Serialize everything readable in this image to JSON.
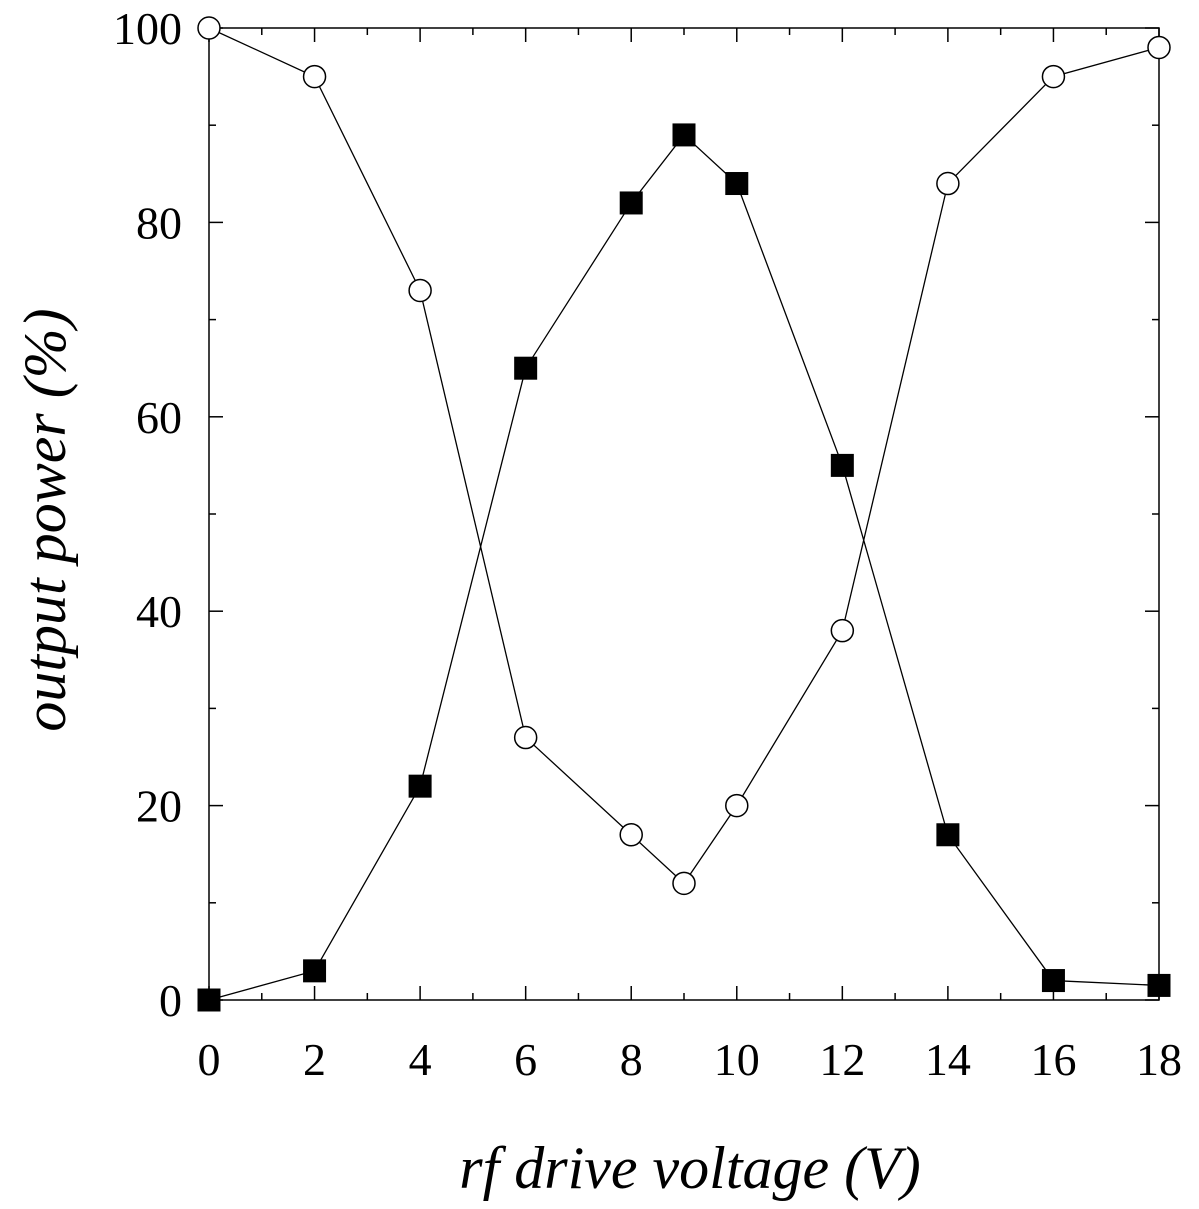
{
  "chart_data": {
    "type": "line",
    "xlabel": "rf drive voltage (V)",
    "ylabel": "output power (%)",
    "xlim": [
      0,
      18
    ],
    "ylim": [
      0,
      100
    ],
    "x_ticks": [
      "0",
      "2",
      "4",
      "6",
      "8",
      "10",
      "12",
      "14",
      "16",
      "18"
    ],
    "y_ticks": [
      "0",
      "20",
      "40",
      "60",
      "80",
      "100"
    ],
    "grid": false,
    "legend": "none",
    "series": [
      {
        "marker": "open-circle",
        "color": "#000000",
        "x": [
          0,
          2,
          4,
          6,
          8,
          9,
          10,
          12,
          14,
          16,
          18
        ],
        "y": [
          100,
          95,
          73,
          27,
          17,
          12,
          20,
          38,
          84,
          95,
          98
        ]
      },
      {
        "marker": "filled-square",
        "color": "#000000",
        "x": [
          0,
          2,
          4,
          6,
          8,
          9,
          10,
          12,
          14,
          16,
          18
        ],
        "y": [
          0,
          3,
          22,
          65,
          82,
          89,
          84,
          55,
          17,
          2,
          1.5
        ]
      }
    ]
  }
}
